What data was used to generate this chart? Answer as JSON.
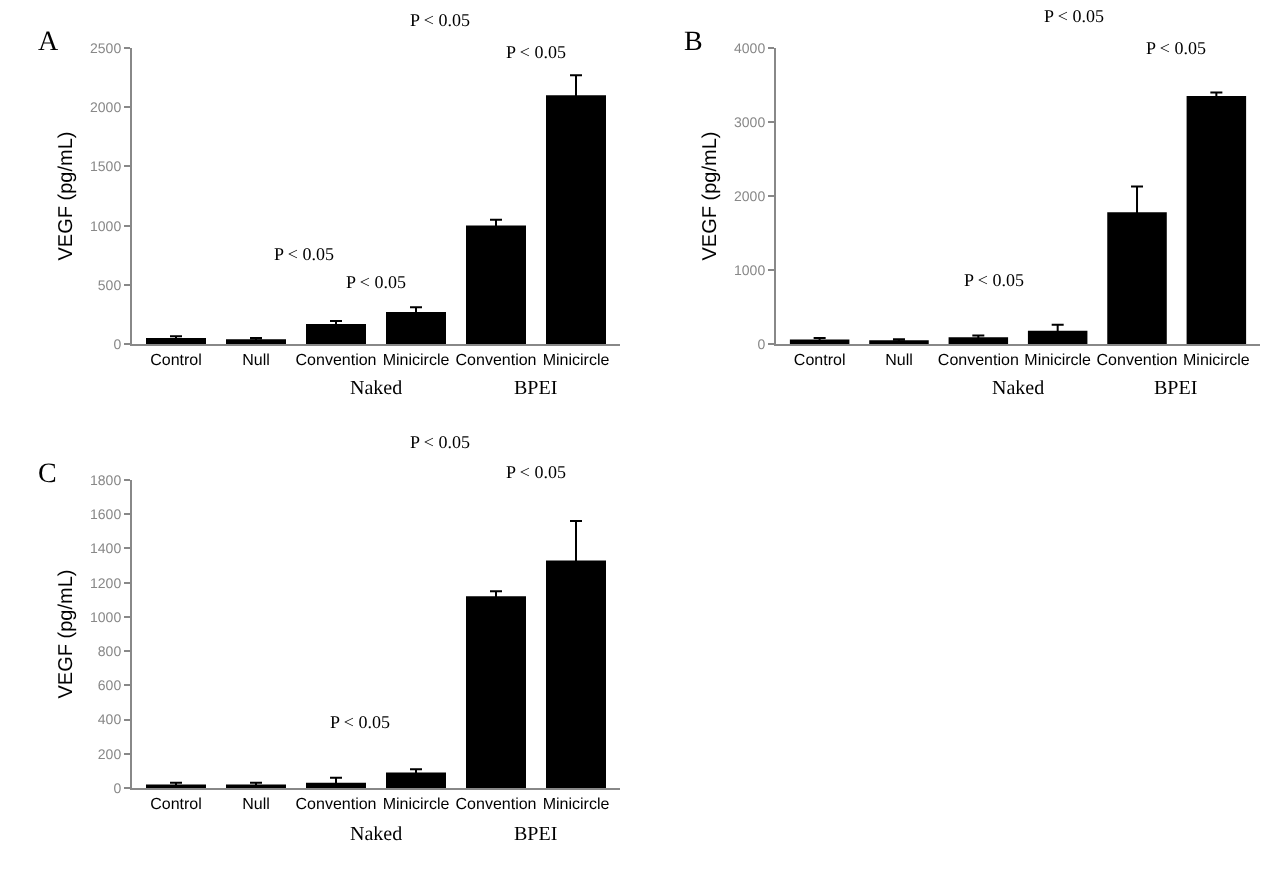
{
  "chart_data": [
    {
      "type": "bar",
      "title": "A",
      "ylabel": "VEGF (pg/mL)",
      "categories": [
        "Control",
        "Null",
        "Convention",
        "Minicircle",
        "Convention",
        "Minicircle"
      ],
      "series": [
        {
          "color": "#000000",
          "values": [
            50,
            40,
            170,
            270,
            1000,
            2100
          ],
          "errors": [
            15,
            10,
            25,
            40,
            50,
            170
          ]
        }
      ],
      "ylim": [
        0,
        2500
      ],
      "yticks": [
        0,
        {
          "value": 500,
          "label": "500"
        },
        1000,
        1500,
        2000,
        2500
      ],
      "annotations": [
        "P < 0.05",
        "P < 0.05",
        "P < 0.05",
        "P < 0.05",
        "Naked",
        "BPEI"
      ]
    },
    {
      "type": "bar",
      "title": "B",
      "ylabel": "VEGF (pg/mL)",
      "categories": [
        "Control",
        "Null",
        "Convention",
        "Minicircle",
        "Convention",
        "Minicircle"
      ],
      "series": [
        {
          "color": "#000000",
          "values": [
            60,
            50,
            90,
            180,
            1780,
            3350
          ],
          "errors": [
            20,
            15,
            25,
            80,
            350,
            50
          ]
        }
      ],
      "ylim": [
        0,
        4000
      ],
      "yticks": [
        0,
        1000,
        2000,
        3000,
        4000
      ],
      "annotations": [
        "P < 0.05",
        "P < 0.05",
        "P < 0.05",
        "Naked",
        "BPEI"
      ]
    },
    {
      "type": "bar",
      "title": "C",
      "ylabel": "VEGF (pg/mL)",
      "categories": [
        "Control",
        "Null",
        "Convention",
        "Minicircle",
        "Convention",
        "Minicircle"
      ],
      "series": [
        {
          "color": "#000000",
          "values": [
            20,
            20,
            30,
            90,
            1120,
            1330
          ],
          "errors": [
            10,
            10,
            30,
            20,
            30,
            230
          ]
        }
      ],
      "ylim": [
        0,
        1800
      ],
      "yticks": [
        0,
        200,
        400,
        600,
        800,
        1000,
        1200,
        1400,
        1600,
        1800
      ],
      "annotations": [
        "P < 0.05",
        "P < 0.05",
        "P < 0.05",
        "Naked",
        "BPEI"
      ]
    }
  ]
}
